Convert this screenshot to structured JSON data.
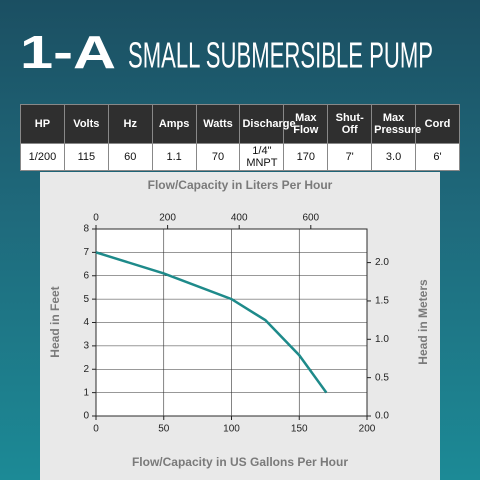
{
  "header": {
    "model": "1-A",
    "title": "SMALL SUBMERSIBLE PUMP"
  },
  "table": {
    "columns": [
      "HP",
      "Volts",
      "Hz",
      "Amps",
      "Watts",
      "Discharge",
      "Max Flow",
      "Shut-Off",
      "Max Pressure",
      "Cord"
    ],
    "rows": [
      [
        "1/200",
        "115",
        "60",
        "1.1",
        "70",
        "1/4\" MNPT",
        "170",
        "7'",
        "3.0",
        "6'"
      ]
    ]
  },
  "chart_data": {
    "type": "line",
    "x2_label": "Flow/Capacity in Liters Per Hour",
    "x_label": "Flow/Capacity in US Gallons Per Hour",
    "y_label": "Head in Feet",
    "y2_label": "Head in Meters",
    "x": [
      0,
      50,
      100,
      125,
      150,
      170
    ],
    "values": [
      7,
      6.1,
      5,
      4.1,
      2.6,
      1
    ],
    "color": "#1e8a8a",
    "xlim": [
      0,
      200
    ],
    "xticks": [
      0,
      50,
      100,
      150,
      200
    ],
    "ylim": [
      0,
      8
    ],
    "yticks": [
      0,
      1,
      2,
      3,
      4,
      5,
      6,
      7,
      8
    ],
    "x2lim": [
      0,
      757
    ],
    "x2ticks": [
      0,
      200,
      400,
      600
    ],
    "y2lim": [
      0,
      2.438
    ],
    "y2ticks": [
      {
        "value": 0,
        "label": "0.0"
      },
      0.5,
      {
        "value": 1,
        "label": "1.0"
      },
      1.5,
      {
        "value": 2,
        "label": "2.0"
      }
    ],
    "grid": true
  }
}
